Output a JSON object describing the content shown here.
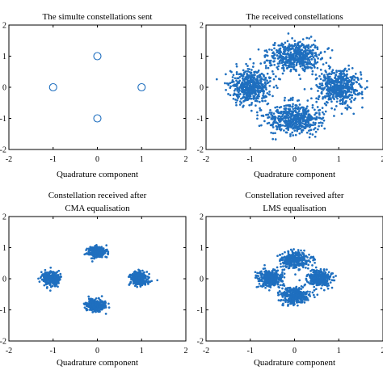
{
  "chart_data": [
    {
      "type": "scatter",
      "title_lines": [
        "The simulte constellations sent"
      ],
      "xlabel": "Quadrature component",
      "xlim": [
        -2,
        2
      ],
      "ylim": [
        -2,
        2
      ],
      "xticks": [
        "-2",
        "-1",
        "0",
        "1",
        "2"
      ],
      "yticks": [
        "2",
        "1",
        "0",
        "-1",
        "-2"
      ],
      "marker": "circle-open",
      "color": "#1f6fbf",
      "points": [
        [
          0,
          1
        ],
        [
          -1,
          0
        ],
        [
          1,
          0
        ],
        [
          0,
          -1
        ]
      ]
    },
    {
      "type": "scatter",
      "title_lines": [
        "The received constellations"
      ],
      "xlabel": "Quadrature component",
      "xlim": [
        -2,
        2
      ],
      "ylim": [
        -2,
        2
      ],
      "xticks": [
        "-2",
        "-1",
        "0",
        "1",
        "2"
      ],
      "yticks": [
        "2",
        "1",
        "0",
        "-1",
        "-2"
      ],
      "marker": "dot",
      "color": "#1f6fbf",
      "clusters": [
        {
          "center": [
            0,
            1
          ],
          "spread": [
            0.55,
            0.42
          ],
          "count": 520
        },
        {
          "center": [
            -1,
            0
          ],
          "spread": [
            0.42,
            0.5
          ],
          "count": 520
        },
        {
          "center": [
            1,
            0
          ],
          "spread": [
            0.42,
            0.5
          ],
          "count": 520
        },
        {
          "center": [
            0,
            -1
          ],
          "spread": [
            0.55,
            0.42
          ],
          "count": 520
        }
      ]
    },
    {
      "type": "scatter",
      "title_lines": [
        "Constellation received after",
        "CMA equalisation"
      ],
      "xlabel": "Quadrature component",
      "xlim": [
        -2,
        2
      ],
      "ylim": [
        -2,
        2
      ],
      "xticks": [
        "-2",
        "-1",
        "0",
        "1",
        "2"
      ],
      "yticks": [
        "2",
        "1",
        "0",
        "-1",
        "-2"
      ],
      "marker": "dot",
      "color": "#1f6fbf",
      "clusters": [
        {
          "center": [
            0,
            0.85
          ],
          "spread": [
            0.2,
            0.16
          ],
          "count": 300
        },
        {
          "center": [
            -1.05,
            0
          ],
          "spread": [
            0.18,
            0.2
          ],
          "count": 300
        },
        {
          "center": [
            0.95,
            0
          ],
          "spread": [
            0.18,
            0.2
          ],
          "count": 300
        },
        {
          "center": [
            -0.05,
            -0.85
          ],
          "spread": [
            0.2,
            0.16
          ],
          "count": 300
        }
      ]
    },
    {
      "type": "scatter",
      "title_lines": [
        "Constellation reveived after",
        "LMS equalisation"
      ],
      "xlabel": "Quadrature component",
      "xlim": [
        -2,
        2
      ],
      "ylim": [
        -2,
        2
      ],
      "xticks": [
        "-2",
        "-1",
        "0",
        "1",
        "2"
      ],
      "yticks": [
        "2",
        "1",
        "0",
        "-1",
        "-2"
      ],
      "marker": "dot",
      "color": "#1f6fbf",
      "clusters": [
        {
          "center": [
            0,
            0.6
          ],
          "spread": [
            0.3,
            0.25
          ],
          "count": 320
        },
        {
          "center": [
            -0.55,
            0
          ],
          "spread": [
            0.25,
            0.25
          ],
          "count": 320
        },
        {
          "center": [
            0.55,
            0
          ],
          "spread": [
            0.25,
            0.25
          ],
          "count": 320
        },
        {
          "center": [
            0,
            -0.55
          ],
          "spread": [
            0.3,
            0.25
          ],
          "count": 320
        }
      ]
    }
  ]
}
